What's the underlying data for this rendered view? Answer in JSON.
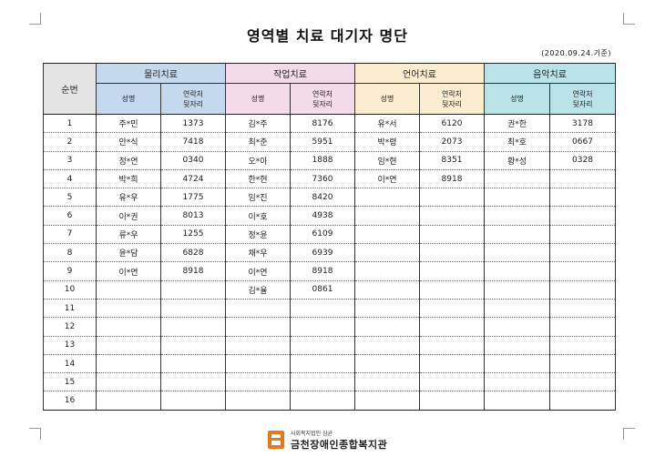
{
  "title": "영역별 치료 대기자 명단",
  "date_note": "(2020.09.24.기준)",
  "table": {
    "seq_header": "순번",
    "groups": [
      {
        "name": "물리치료",
        "color": "#c5d9ee"
      },
      {
        "name": "작업치료",
        "color": "#f4dbea"
      },
      {
        "name": "언어치료",
        "color": "#fcecd0"
      },
      {
        "name": "음악치료",
        "color": "#b9e3e8"
      }
    ],
    "sub_name": "성명",
    "sub_contact_line1": "연락처",
    "sub_contact_line2": "뒷자리",
    "rows": [
      {
        "no": "1",
        "c": [
          [
            "주*민",
            "1373"
          ],
          [
            "김*주",
            "8176"
          ],
          [
            "유*서",
            "6120"
          ],
          [
            "권*한",
            "3178"
          ]
        ]
      },
      {
        "no": "2",
        "c": [
          [
            "안*식",
            "7418"
          ],
          [
            "최*준",
            "5951"
          ],
          [
            "박*령",
            "2073"
          ],
          [
            "최*호",
            "0667"
          ]
        ]
      },
      {
        "no": "3",
        "c": [
          [
            "정*연",
            "0340"
          ],
          [
            "오*아",
            "1888"
          ],
          [
            "임*현",
            "8351"
          ],
          [
            "황*성",
            "0328"
          ]
        ]
      },
      {
        "no": "4",
        "c": [
          [
            "박*희",
            "4724"
          ],
          [
            "한*현",
            "7360"
          ],
          [
            "이*연",
            "8918"
          ],
          [
            "",
            ""
          ]
        ]
      },
      {
        "no": "5",
        "c": [
          [
            "유*우",
            "1775"
          ],
          [
            "임*진",
            "8420"
          ],
          [
            "",
            ""
          ],
          [
            "",
            ""
          ]
        ]
      },
      {
        "no": "6",
        "c": [
          [
            "이*권",
            "8013"
          ],
          [
            "이*호",
            "4938"
          ],
          [
            "",
            ""
          ],
          [
            "",
            ""
          ]
        ]
      },
      {
        "no": "7",
        "c": [
          [
            "류*우",
            "1255"
          ],
          [
            "정*윤",
            "6109"
          ],
          [
            "",
            ""
          ],
          [
            "",
            ""
          ]
        ]
      },
      {
        "no": "8",
        "c": [
          [
            "윤*담",
            "6828"
          ],
          [
            "채*우",
            "6939"
          ],
          [
            "",
            ""
          ],
          [
            "",
            ""
          ]
        ]
      },
      {
        "no": "9",
        "c": [
          [
            "이*연",
            "8918"
          ],
          [
            "이*연",
            "8918"
          ],
          [
            "",
            ""
          ],
          [
            "",
            ""
          ]
        ]
      },
      {
        "no": "10",
        "c": [
          [
            "",
            ""
          ],
          [
            "김*율",
            "0861"
          ],
          [
            "",
            ""
          ],
          [
            "",
            ""
          ]
        ]
      },
      {
        "no": "11",
        "c": [
          [
            "",
            ""
          ],
          [
            "",
            ""
          ],
          [
            "",
            ""
          ],
          [
            "",
            ""
          ]
        ]
      },
      {
        "no": "12",
        "c": [
          [
            "",
            ""
          ],
          [
            "",
            ""
          ],
          [
            "",
            ""
          ],
          [
            "",
            ""
          ]
        ]
      },
      {
        "no": "13",
        "c": [
          [
            "",
            ""
          ],
          [
            "",
            ""
          ],
          [
            "",
            ""
          ],
          [
            "",
            ""
          ]
        ]
      },
      {
        "no": "14",
        "c": [
          [
            "",
            ""
          ],
          [
            "",
            ""
          ],
          [
            "",
            ""
          ],
          [
            "",
            ""
          ]
        ]
      },
      {
        "no": "15",
        "c": [
          [
            "",
            ""
          ],
          [
            "",
            ""
          ],
          [
            "",
            ""
          ],
          [
            "",
            ""
          ]
        ]
      },
      {
        "no": "16",
        "c": [
          [
            "",
            ""
          ],
          [
            "",
            ""
          ],
          [
            "",
            ""
          ],
          [
            "",
            ""
          ]
        ]
      }
    ]
  },
  "logo": {
    "small": "사회복지법인 삼균",
    "big": "금천장애인종합복지관",
    "color": "#e07a1f"
  }
}
